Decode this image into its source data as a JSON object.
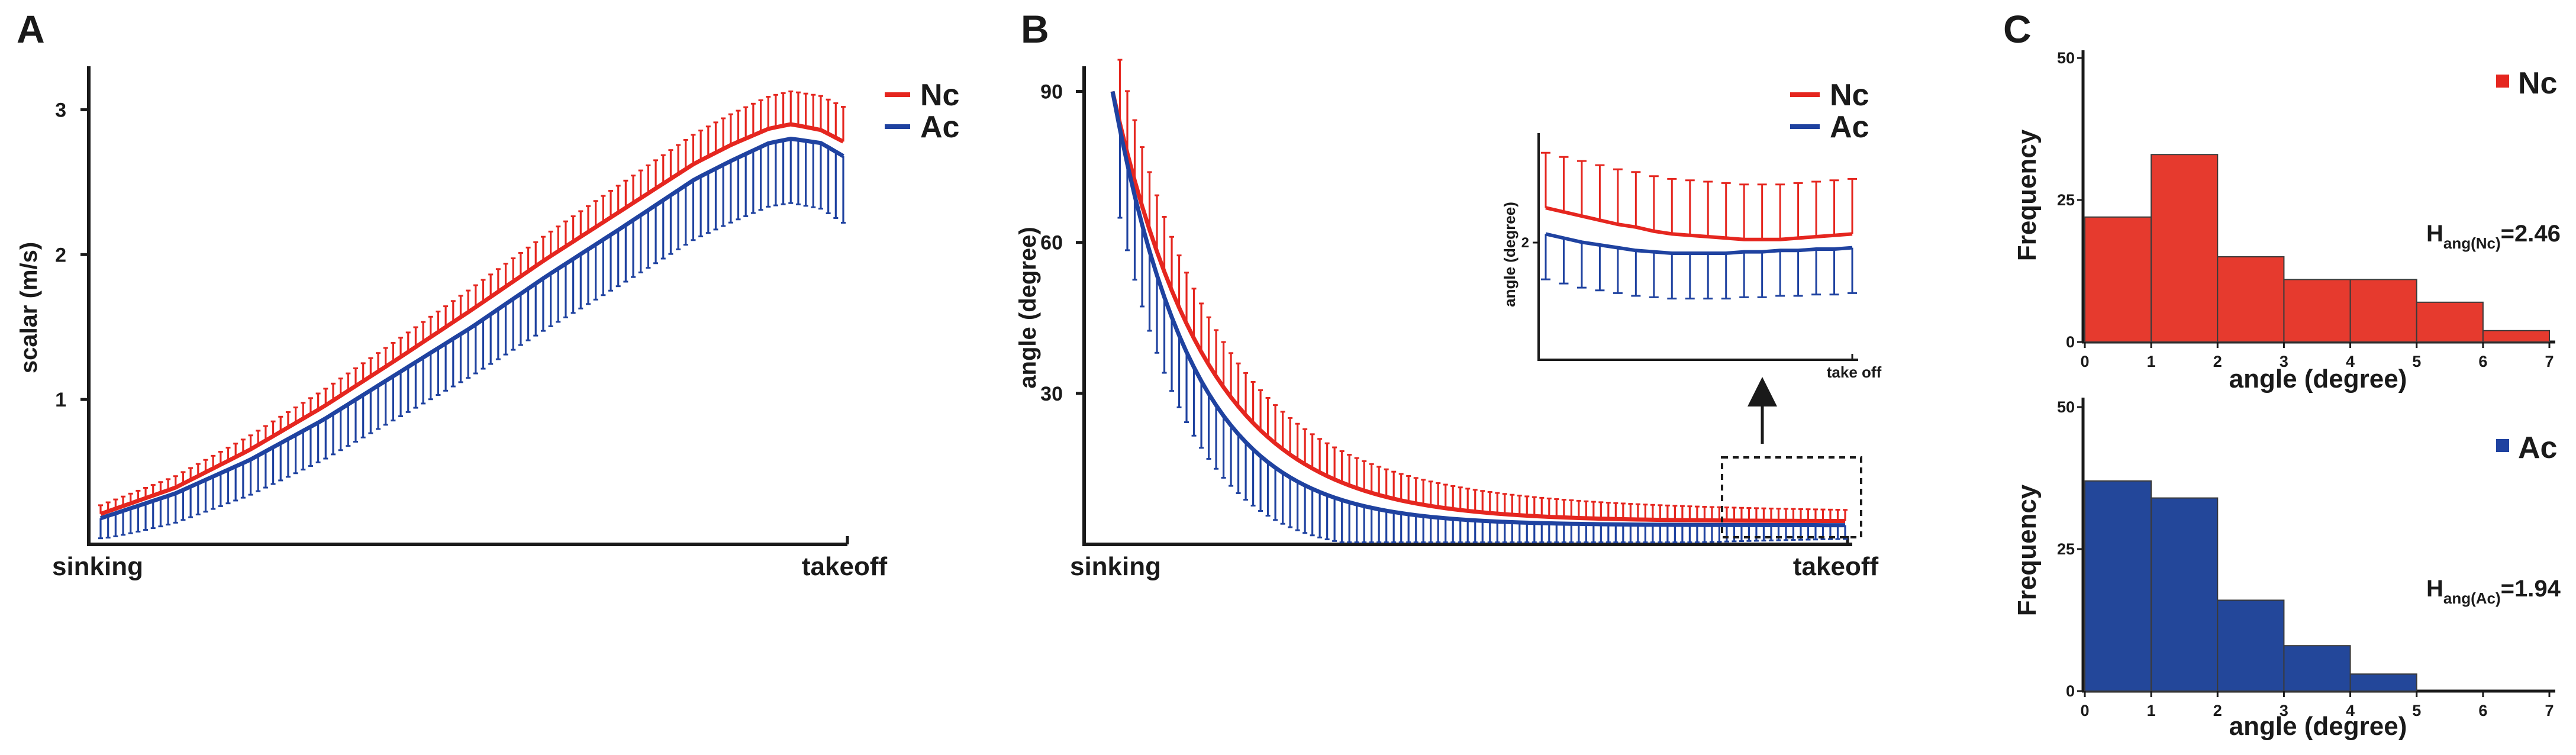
{
  "colors": {
    "nc": "#e5261f",
    "ac": "#1f42a0",
    "nc_hist": "#e63a2e",
    "ac_hist": "#23479a",
    "axis": "#1a1a1a"
  },
  "chart_data": [
    {
      "panel": "A",
      "type": "line",
      "xlabel_start": "sinking",
      "xlabel_end": "takeoff",
      "ylabel": "scalar (m/s)",
      "ylim": [
        0,
        3.3
      ],
      "yticks": [
        1,
        2,
        3
      ],
      "legend": [
        "Nc",
        "Ac"
      ],
      "legend_position": "top-right",
      "series": [
        {
          "name": "Nc",
          "mean_anchors": [
            [
              0,
              0.21
            ],
            [
              0.1,
              0.39
            ],
            [
              0.3,
              0.95
            ],
            [
              0.5,
              1.62
            ],
            [
              0.7,
              2.3
            ],
            [
              0.85,
              2.76
            ],
            [
              0.93,
              2.9
            ],
            [
              0.97,
              2.86
            ],
            [
              1,
              2.78
            ],
            [
              0.2,
              0.65
            ],
            [
              0.4,
              1.28
            ],
            [
              0.6,
              1.97
            ],
            [
              0.8,
              2.63
            ],
            [
              0.9,
              2.87
            ]
          ],
          "err_upper_max": 0.24,
          "error_direction": "up"
        },
        {
          "name": "Ac",
          "mean_anchors": [
            [
              0,
              0.18
            ],
            [
              0.1,
              0.35
            ],
            [
              0.3,
              0.86
            ],
            [
              0.5,
              1.5
            ],
            [
              0.7,
              2.18
            ],
            [
              0.85,
              2.65
            ],
            [
              0.93,
              2.8
            ],
            [
              0.97,
              2.77
            ],
            [
              1,
              2.68
            ],
            [
              0.2,
              0.58
            ],
            [
              0.4,
              1.18
            ],
            [
              0.6,
              1.85
            ],
            [
              0.8,
              2.52
            ],
            [
              0.9,
              2.77
            ]
          ],
          "err_lower_max": 0.46,
          "error_direction": "down"
        }
      ],
      "n_points": 100
    },
    {
      "panel": "B",
      "type": "line",
      "xlabel_start": "sinking",
      "xlabel_end": "takeoff",
      "ylabel": "angle (degree)",
      "ylim": [
        0,
        95
      ],
      "yticks": [
        30,
        60,
        90
      ],
      "legend": [
        "Nc",
        "Ac"
      ],
      "legend_position": "top-right",
      "series": [
        {
          "name": "Nc",
          "start": 90,
          "end": 4.6,
          "decay": 0.13,
          "err_upper_max": 13,
          "error_direction": "up"
        },
        {
          "name": "Ac",
          "start": 90,
          "end": 3.8,
          "decay": 0.11,
          "err_lower_max": 18,
          "error_direction": "down"
        }
      ],
      "n_points": 100,
      "inset": {
        "ylabel": "angle (degree)",
        "ytick": "2",
        "xlabel": "take off",
        "ylim": [
          1.1,
          2.7
        ],
        "series": [
          {
            "name": "Nc",
            "values": [
              2.17,
              2.14,
              2.11,
              2.08,
              2.05,
              2.03,
              2.0,
              1.98,
              1.97,
              1.96,
              1.95,
              1.94,
              1.94,
              1.94,
              1.95,
              1.96,
              1.97,
              1.98
            ],
            "err": 0.4
          },
          {
            "name": "Ac",
            "values": [
              1.98,
              1.95,
              1.92,
              1.9,
              1.88,
              1.86,
              1.85,
              1.84,
              1.84,
              1.84,
              1.84,
              1.85,
              1.85,
              1.86,
              1.86,
              1.87,
              1.87,
              1.88
            ],
            "err": 0.33
          }
        ]
      }
    },
    {
      "panel": "C",
      "type": "bar",
      "subtype": "histogram",
      "series_name": "Nc",
      "bin_edges": [
        0,
        1,
        2,
        3,
        4,
        5,
        6,
        7
      ],
      "values": [
        22,
        33,
        15,
        11,
        11,
        7,
        2
      ],
      "xlabel": "angle (degree)",
      "ylabel": "Frequency",
      "ylim": [
        0,
        50
      ],
      "yticks": [
        0,
        25,
        50
      ],
      "xticks": [
        "0",
        "1",
        "2",
        "3",
        "4",
        "5",
        "6",
        "7"
      ],
      "entropy_main": "H",
      "entropy_sub": "ang(Nc)",
      "entropy_value": "=2.46"
    },
    {
      "panel": "C",
      "type": "bar",
      "subtype": "histogram",
      "series_name": "Ac",
      "bin_edges": [
        0,
        1,
        2,
        3,
        4,
        5,
        6,
        7
      ],
      "values": [
        37,
        34,
        16,
        8,
        3,
        0,
        0
      ],
      "xlabel": "angle (degree)",
      "ylabel": "Frequency",
      "ylim": [
        0,
        50
      ],
      "yticks": [
        0,
        25,
        50
      ],
      "xticks": [
        "0",
        "1",
        "2",
        "3",
        "4",
        "5",
        "6",
        "7"
      ],
      "entropy_main": "H",
      "entropy_sub": "ang(Ac)",
      "entropy_value": "=1.94"
    }
  ],
  "panels": {
    "a": "A",
    "b": "B",
    "c": "C"
  }
}
